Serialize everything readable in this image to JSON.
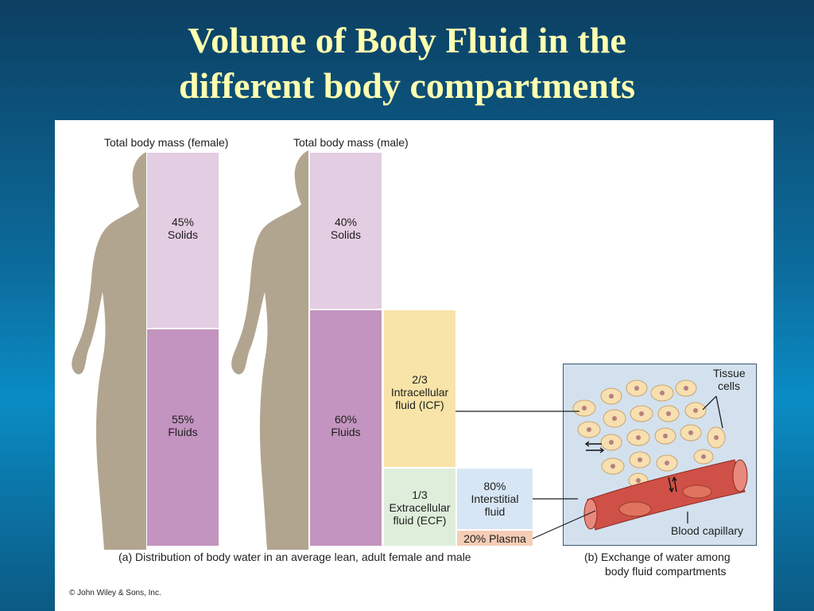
{
  "slide": {
    "title_line1": "Volume of Body Fluid in the",
    "title_line2": "different body compartments"
  },
  "figure": {
    "female": {
      "header": "Total body mass (female)",
      "solids_pct": "45%",
      "solids_label": "Solids",
      "fluids_pct": "55%",
      "fluids_label": "Fluids"
    },
    "male": {
      "header": "Total body mass (male)",
      "solids_pct": "40%",
      "solids_label": "Solids",
      "fluids_pct": "60%",
      "fluids_label": "Fluids"
    },
    "icf": {
      "fraction": "2/3",
      "line1": "Intracellular",
      "line2": "fluid (ICF)"
    },
    "ecf": {
      "fraction": "1/3",
      "line1": "Extracellular",
      "line2": "fluid (ECF)"
    },
    "interstitial": {
      "pct": "80%",
      "line1": "Interstitial",
      "line2": "fluid"
    },
    "plasma": {
      "label": "20% Plasma"
    },
    "caption_a": "(a) Distribution of body water in an average lean, adult female and male",
    "panel_b": {
      "tissue_line1": "Tissue",
      "tissue_line2": "cells",
      "capillary_label": "Blood capillary",
      "caption_line1": "(b) Exchange of water among",
      "caption_line2": "body fluid compartments"
    },
    "copyright": "© John Wiley & Sons, Inc.",
    "colors": {
      "solids": "#e3cde2",
      "fluids": "#c394bf",
      "icf": "#f8e4a8",
      "ecf": "#deeedb",
      "interstitial": "#d7e6f4",
      "plasma": "#f6cdb6",
      "silhouette": "#b2a58f"
    }
  }
}
